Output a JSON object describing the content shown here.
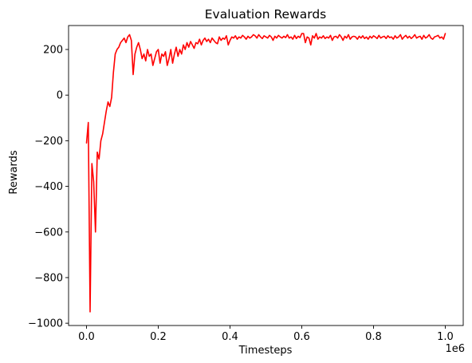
{
  "chart_data": {
    "type": "line",
    "title": "Evaluation Rewards",
    "xlabel": "Timesteps",
    "ylabel": "Rewards",
    "x_offset_label": "1e6",
    "xlim": [
      -0.05,
      1.05
    ],
    "ylim": [
      -1010,
      305
    ],
    "x_ticks": [
      0.0,
      0.2,
      0.4,
      0.6,
      0.8,
      1.0
    ],
    "x_tick_labels": [
      "0.0",
      "0.2",
      "0.4",
      "0.6",
      "0.8",
      "1.0"
    ],
    "y_ticks": [
      -1000,
      -800,
      -600,
      -400,
      -200,
      0,
      200
    ],
    "y_tick_labels": [
      "−1000",
      "−800",
      "−600",
      "−400",
      "−200",
      "0",
      "200"
    ],
    "grid": false,
    "series": [
      {
        "color": "#ff0000",
        "x": [
          0.0,
          0.005,
          0.01,
          0.015,
          0.02,
          0.025,
          0.03,
          0.035,
          0.04,
          0.045,
          0.05,
          0.055,
          0.06,
          0.065,
          0.07,
          0.075,
          0.08,
          0.085,
          0.09,
          0.095,
          0.1,
          0.105,
          0.11,
          0.115,
          0.12,
          0.125,
          0.13,
          0.135,
          0.14,
          0.145,
          0.15,
          0.155,
          0.16,
          0.165,
          0.17,
          0.175,
          0.18,
          0.185,
          0.19,
          0.195,
          0.2,
          0.205,
          0.21,
          0.215,
          0.22,
          0.225,
          0.23,
          0.235,
          0.24,
          0.245,
          0.25,
          0.255,
          0.26,
          0.265,
          0.27,
          0.275,
          0.28,
          0.285,
          0.29,
          0.295,
          0.3,
          0.305,
          0.31,
          0.315,
          0.32,
          0.325,
          0.33,
          0.335,
          0.34,
          0.345,
          0.35,
          0.355,
          0.36,
          0.365,
          0.37,
          0.375,
          0.38,
          0.385,
          0.39,
          0.395,
          0.4,
          0.405,
          0.41,
          0.415,
          0.42,
          0.425,
          0.43,
          0.435,
          0.44,
          0.445,
          0.45,
          0.455,
          0.46,
          0.465,
          0.47,
          0.475,
          0.48,
          0.485,
          0.49,
          0.495,
          0.5,
          0.505,
          0.51,
          0.515,
          0.52,
          0.525,
          0.53,
          0.535,
          0.54,
          0.545,
          0.55,
          0.555,
          0.56,
          0.565,
          0.57,
          0.575,
          0.58,
          0.585,
          0.59,
          0.595,
          0.6,
          0.605,
          0.61,
          0.615,
          0.62,
          0.625,
          0.63,
          0.635,
          0.64,
          0.645,
          0.65,
          0.655,
          0.66,
          0.665,
          0.67,
          0.675,
          0.68,
          0.685,
          0.69,
          0.695,
          0.7,
          0.705,
          0.71,
          0.715,
          0.72,
          0.725,
          0.73,
          0.735,
          0.74,
          0.745,
          0.75,
          0.755,
          0.76,
          0.765,
          0.77,
          0.775,
          0.78,
          0.785,
          0.79,
          0.795,
          0.8,
          0.805,
          0.81,
          0.815,
          0.82,
          0.825,
          0.83,
          0.835,
          0.84,
          0.845,
          0.85,
          0.855,
          0.86,
          0.865,
          0.87,
          0.875,
          0.88,
          0.885,
          0.89,
          0.895,
          0.9,
          0.905,
          0.91,
          0.915,
          0.92,
          0.925,
          0.93,
          0.935,
          0.94,
          0.945,
          0.95,
          0.955,
          0.96,
          0.965,
          0.97,
          0.975,
          0.98,
          0.985,
          0.99,
          0.995,
          1.0
        ],
        "y": [
          -210,
          -120,
          -950,
          -300,
          -380,
          -600,
          -250,
          -280,
          -200,
          -170,
          -120,
          -70,
          -30,
          -50,
          -10,
          100,
          180,
          200,
          210,
          230,
          240,
          250,
          230,
          255,
          265,
          240,
          90,
          180,
          210,
          230,
          200,
          160,
          180,
          150,
          200,
          170,
          180,
          130,
          160,
          190,
          200,
          140,
          180,
          170,
          190,
          130,
          160,
          200,
          140,
          180,
          210,
          170,
          200,
          180,
          220,
          200,
          230,
          210,
          235,
          220,
          205,
          230,
          225,
          245,
          220,
          240,
          250,
          235,
          245,
          230,
          250,
          240,
          230,
          225,
          255,
          240,
          250,
          245,
          260,
          220,
          240,
          255,
          250,
          260,
          245,
          255,
          250,
          262,
          255,
          245,
          258,
          250,
          255,
          265,
          260,
          250,
          265,
          255,
          248,
          260,
          255,
          250,
          262,
          255,
          240,
          258,
          250,
          262,
          255,
          250,
          258,
          252,
          265,
          250,
          255,
          245,
          262,
          248,
          258,
          252,
          270,
          270,
          230,
          255,
          250,
          220,
          260,
          250,
          270,
          245,
          255,
          250,
          260,
          248,
          255,
          250,
          262,
          240,
          255,
          258,
          250,
          265,
          255,
          240,
          258,
          250,
          265,
          245,
          255,
          258,
          255,
          245,
          258,
          250,
          260,
          248,
          255,
          245,
          258,
          250,
          260,
          255,
          248,
          262,
          250,
          255,
          258,
          248,
          260,
          252,
          255,
          245,
          260,
          250,
          255,
          265,
          245,
          255,
          262,
          250,
          258,
          248,
          255,
          265,
          250,
          255,
          258,
          245,
          262,
          250,
          255,
          265,
          250,
          245,
          255,
          258,
          262,
          250,
          255,
          245,
          270
        ]
      }
    ]
  }
}
